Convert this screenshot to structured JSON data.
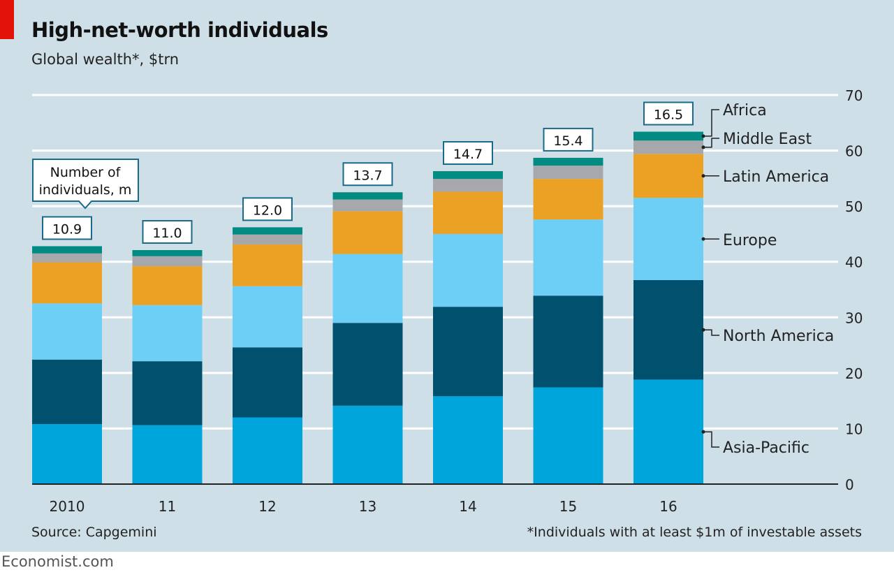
{
  "title": "High-net-worth individuals",
  "subtitle": "Global wealth*, $trn",
  "source": "Source: Capgemini",
  "footnote": "*Individuals with at least $1m of investable assets",
  "brand": "Economist.com",
  "chart_data": {
    "type": "bar",
    "stacked": true,
    "title": "High-net-worth individuals",
    "ylabel": "Global wealth*, $trn",
    "ylim": [
      0,
      70
    ],
    "yticks": [
      0,
      10,
      20,
      30,
      40,
      50,
      60,
      70
    ],
    "y_axis_side": "right",
    "grid": true,
    "categories": [
      "2010",
      "11",
      "12",
      "13",
      "14",
      "15",
      "16"
    ],
    "series": [
      {
        "name": "Asia-Pacific",
        "color": "#00a5dc",
        "values": [
          10.8,
          10.6,
          12.0,
          14.1,
          15.8,
          17.4,
          18.8
        ]
      },
      {
        "name": "North America",
        "color": "#00506e",
        "values": [
          11.6,
          11.5,
          12.6,
          14.9,
          16.1,
          16.5,
          17.9
        ]
      },
      {
        "name": "Europe",
        "color": "#6dcff6",
        "values": [
          10.1,
          10.1,
          11.0,
          12.4,
          13.1,
          13.7,
          14.8
        ]
      },
      {
        "name": "Latin America",
        "color": "#eba224",
        "values": [
          7.4,
          7.0,
          7.5,
          7.7,
          7.6,
          7.3,
          7.9
        ]
      },
      {
        "name": "Middle East",
        "color": "#a6a8ab",
        "values": [
          1.6,
          1.8,
          1.8,
          2.1,
          2.3,
          2.4,
          2.4
        ]
      },
      {
        "name": "Africa",
        "color": "#008c82",
        "values": [
          1.3,
          1.1,
          1.3,
          1.3,
          1.4,
          1.4,
          1.6
        ]
      }
    ],
    "annotation": {
      "label": [
        "Number of",
        "individuals, m"
      ],
      "values": [
        "10.9",
        "11.0",
        "12.0",
        "13.7",
        "14.7",
        "15.4",
        "16.5"
      ]
    },
    "legend_placement": "right, labels at last bar"
  }
}
